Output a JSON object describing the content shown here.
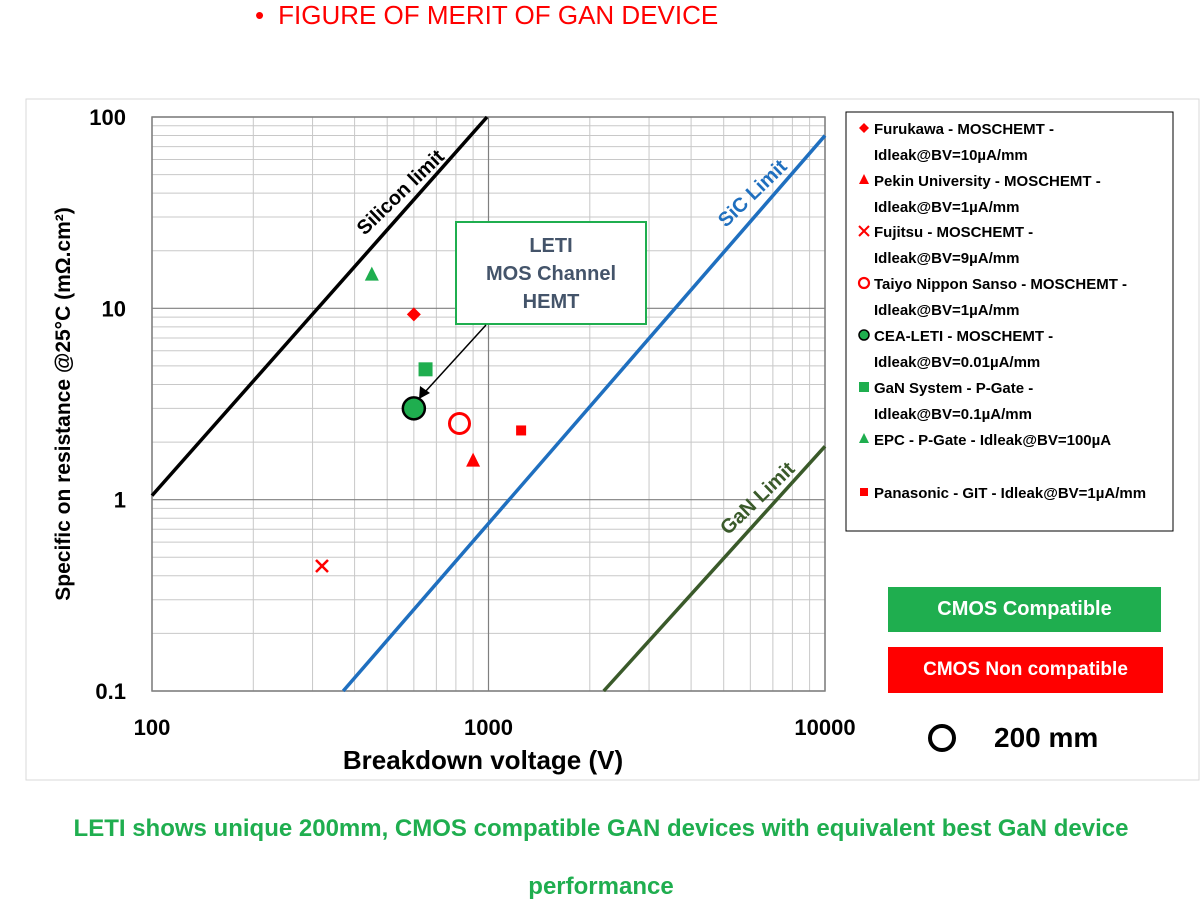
{
  "slide": {
    "bullet": "•",
    "title": "FIGURE OF MERIT OF GAN DEVICE",
    "footer": "LETI shows unique 200mm, CMOS compatible GAN devices with equivalent best GaN device performance"
  },
  "badges": {
    "compatible": "CMOS Compatible",
    "non_compatible": "CMOS Non compatible",
    "compatible_color": "#1fae4f",
    "non_compatible_color": "#ff0000"
  },
  "size_legend": {
    "label": "200 mm"
  },
  "annotation": {
    "lines": [
      "LETI",
      "MOS Channel",
      "HEMT"
    ]
  },
  "chart_data": {
    "type": "scatter",
    "xlabel": "Breakdown voltage (V)",
    "ylabel": "Specific on resistance @25°C  (mΩ.cm²)",
    "xscale": "log",
    "yscale": "log",
    "xlim": [
      100,
      10000
    ],
    "ylim": [
      0.1,
      100
    ],
    "xticks": [
      {
        "value": 100,
        "label": "100"
      },
      {
        "value": 1000,
        "label": "1000"
      },
      {
        "value": 10000,
        "label": "10000"
      }
    ],
    "yticks": [
      {
        "value": 0.1,
        "label": "0.1"
      },
      {
        "value": 1,
        "label": "1"
      },
      {
        "value": 10,
        "label": "10"
      },
      {
        "value": 100,
        "label": "100"
      }
    ],
    "grid": true,
    "legend_position": "right",
    "limit_lines": [
      {
        "name": "Silicon limit",
        "color": "#000000",
        "points": [
          [
            100,
            1.05
          ],
          [
            990,
            100
          ]
        ]
      },
      {
        "name": "SiC Limit",
        "color": "#1f6fbf",
        "points": [
          [
            370,
            0.1
          ],
          [
            10000,
            80
          ]
        ]
      },
      {
        "name": "GaN Limit",
        "color": "#3a5a2a",
        "points": [
          [
            2200,
            0.1
          ],
          [
            10000,
            1.9
          ]
        ]
      }
    ],
    "series": [
      {
        "name": "Furukawa - MOSCHEMT - Idleak@BV=10µA/mm",
        "marker": "diamond",
        "color": "#ff0000",
        "x": [
          600
        ],
        "y": [
          9.3
        ]
      },
      {
        "name": "Pekin University - MOSCHEMT - Idleak@BV=1µA/mm",
        "marker": "triangle",
        "color": "#ff0000",
        "x": [
          900
        ],
        "y": [
          1.6
        ]
      },
      {
        "name": "Fujitsu - MOSCHEMT  - Idleak@BV=9µA/mm",
        "marker": "cross",
        "color": "#ff0000",
        "x": [
          320
        ],
        "y": [
          0.45
        ]
      },
      {
        "name": "Taiyo Nippon Sanso - MOSCHEMT - Idleak@BV=1µA/mm",
        "marker": "ring",
        "color": "#ff0000",
        "x": [
          820
        ],
        "y": [
          2.5
        ]
      },
      {
        "name": "CEA-LETI - MOSCHEMT - Idleak@BV=0.01µA/mm",
        "marker": "bigcircle",
        "color": "#1fae4f",
        "x": [
          600
        ],
        "y": [
          3.0
        ]
      },
      {
        "name": "GaN System - P-Gate - Idleak@BV=0.1µA/mm",
        "marker": "square",
        "color": "#1fae4f",
        "x": [
          650
        ],
        "y": [
          4.8
        ]
      },
      {
        "name": "EPC - P-Gate - Idleak@BV=100µA",
        "marker": "triangle",
        "color": "#1fae4f",
        "x": [
          450
        ],
        "y": [
          15
        ]
      },
      {
        "name": "Panasonic - GIT - Idleak@BV=1µA/mm",
        "marker": "smallsquare",
        "color": "#ff0000",
        "x": [
          1250
        ],
        "y": [
          2.3
        ]
      }
    ],
    "legend_entries": [
      {
        "line1": "Furukawa - MOSCHEMT -",
        "line2": "Idleak@BV=10µA/mm"
      },
      {
        "line1": "Pekin University - MOSCHEMT -",
        "line2": "Idleak@BV=1µA/mm"
      },
      {
        "line1": "Fujitsu - MOSCHEMT  -",
        "line2": "Idleak@BV=9µA/mm"
      },
      {
        "line1": "Taiyo Nippon Sanso - MOSCHEMT -",
        "line2": "Idleak@BV=1µA/mm"
      },
      {
        "line1": "CEA-LETI - MOSCHEMT -",
        "line2": "Idleak@BV=0.01µA/mm"
      },
      {
        "line1": "GaN System - P-Gate -",
        "line2": "Idleak@BV=0.1µA/mm"
      },
      {
        "line1": "EPC - P-Gate - Idleak@BV=100µA",
        "line2": ""
      },
      {
        "line1": "Panasonic - GIT - Idleak@BV=1µA/mm",
        "line2": ""
      }
    ]
  }
}
